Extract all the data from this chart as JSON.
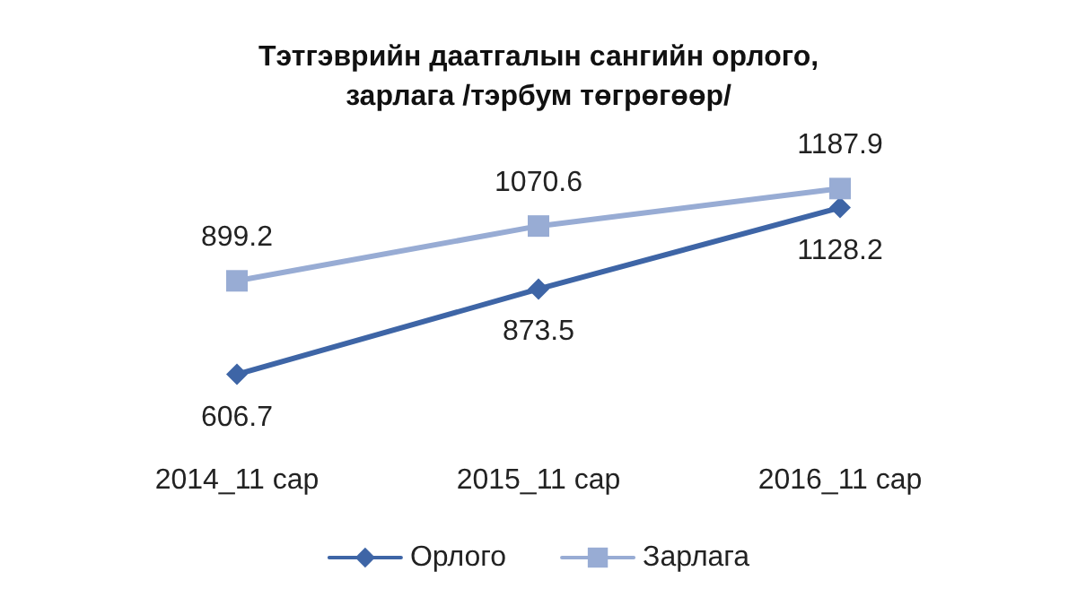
{
  "chart_data": {
    "type": "line",
    "title": "Тэтгэврийн даатгалын сангийн орлого,\nзарлага /тэрбум төгрөгөөр/",
    "categories": [
      "2014_11 сар",
      "2015_11 сар",
      "2016_11 сар"
    ],
    "series": [
      {
        "name": "Орлого",
        "color": "#3e65a6",
        "marker": "diamond",
        "values": [
          606.7,
          873.5,
          1128.2
        ]
      },
      {
        "name": "Зарлага",
        "color": "#98acd4",
        "marker": "square",
        "values": [
          899.2,
          1070.6,
          1187.9
        ]
      }
    ],
    "data_labels": true,
    "legend": "bottom",
    "grid": false,
    "line_style": "solid"
  }
}
